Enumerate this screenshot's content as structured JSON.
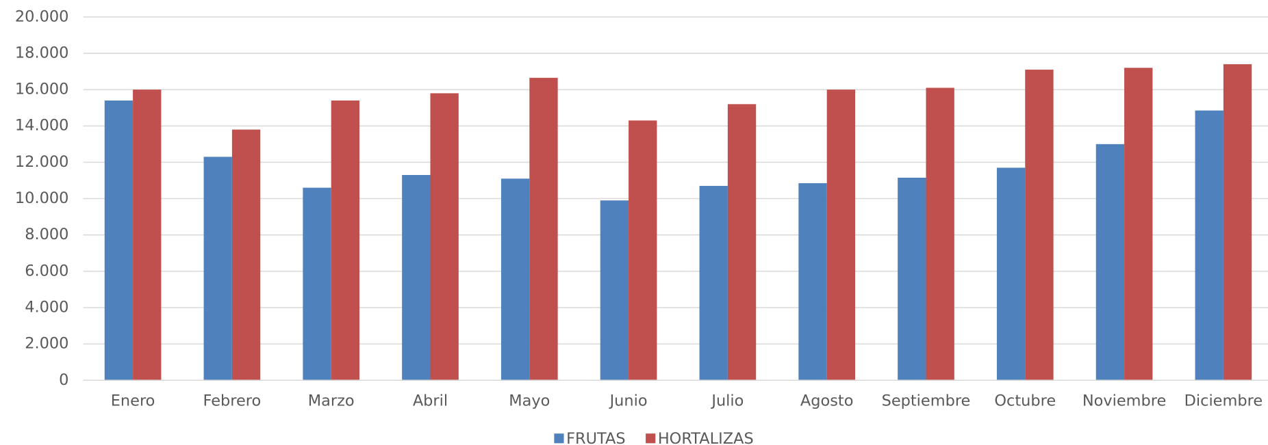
{
  "chart_data": {
    "type": "bar",
    "categories": [
      "Enero",
      "Febrero",
      "Marzo",
      "Abril",
      "Mayo",
      "Junio",
      "Julio",
      "Agosto",
      "Septiembre",
      "Octubre",
      "Noviembre",
      "Diciembre"
    ],
    "series": [
      {
        "name": "FRUTAS",
        "color": "#4f81bd",
        "values": [
          15400,
          12300,
          10600,
          11300,
          11100,
          9900,
          10700,
          10850,
          11150,
          11700,
          13000,
          14850
        ]
      },
      {
        "name": "HORTALIZAS",
        "color": "#c0504d",
        "values": [
          16000,
          13800,
          15400,
          15800,
          16650,
          14300,
          15200,
          16000,
          16100,
          17100,
          17200,
          17400
        ]
      }
    ],
    "ylim": [
      0,
      20000
    ],
    "yticks": [
      0,
      {
        "value": 2000,
        "label": "2.000"
      },
      {
        "value": 4000,
        "label": "4.000"
      },
      {
        "value": 6000,
        "label": "6.000"
      },
      {
        "value": 8000,
        "label": "8.000"
      },
      {
        "value": 10000,
        "label": "10.000"
      },
      {
        "value": 12000,
        "label": "12.000"
      },
      {
        "value": 14000,
        "label": "14.000"
      },
      {
        "value": 16000,
        "label": "16.000"
      },
      {
        "value": 18000,
        "label": "18.000"
      },
      {
        "value": 20000,
        "label": "20.000"
      }
    ],
    "grid": true,
    "legend": "bottom"
  }
}
